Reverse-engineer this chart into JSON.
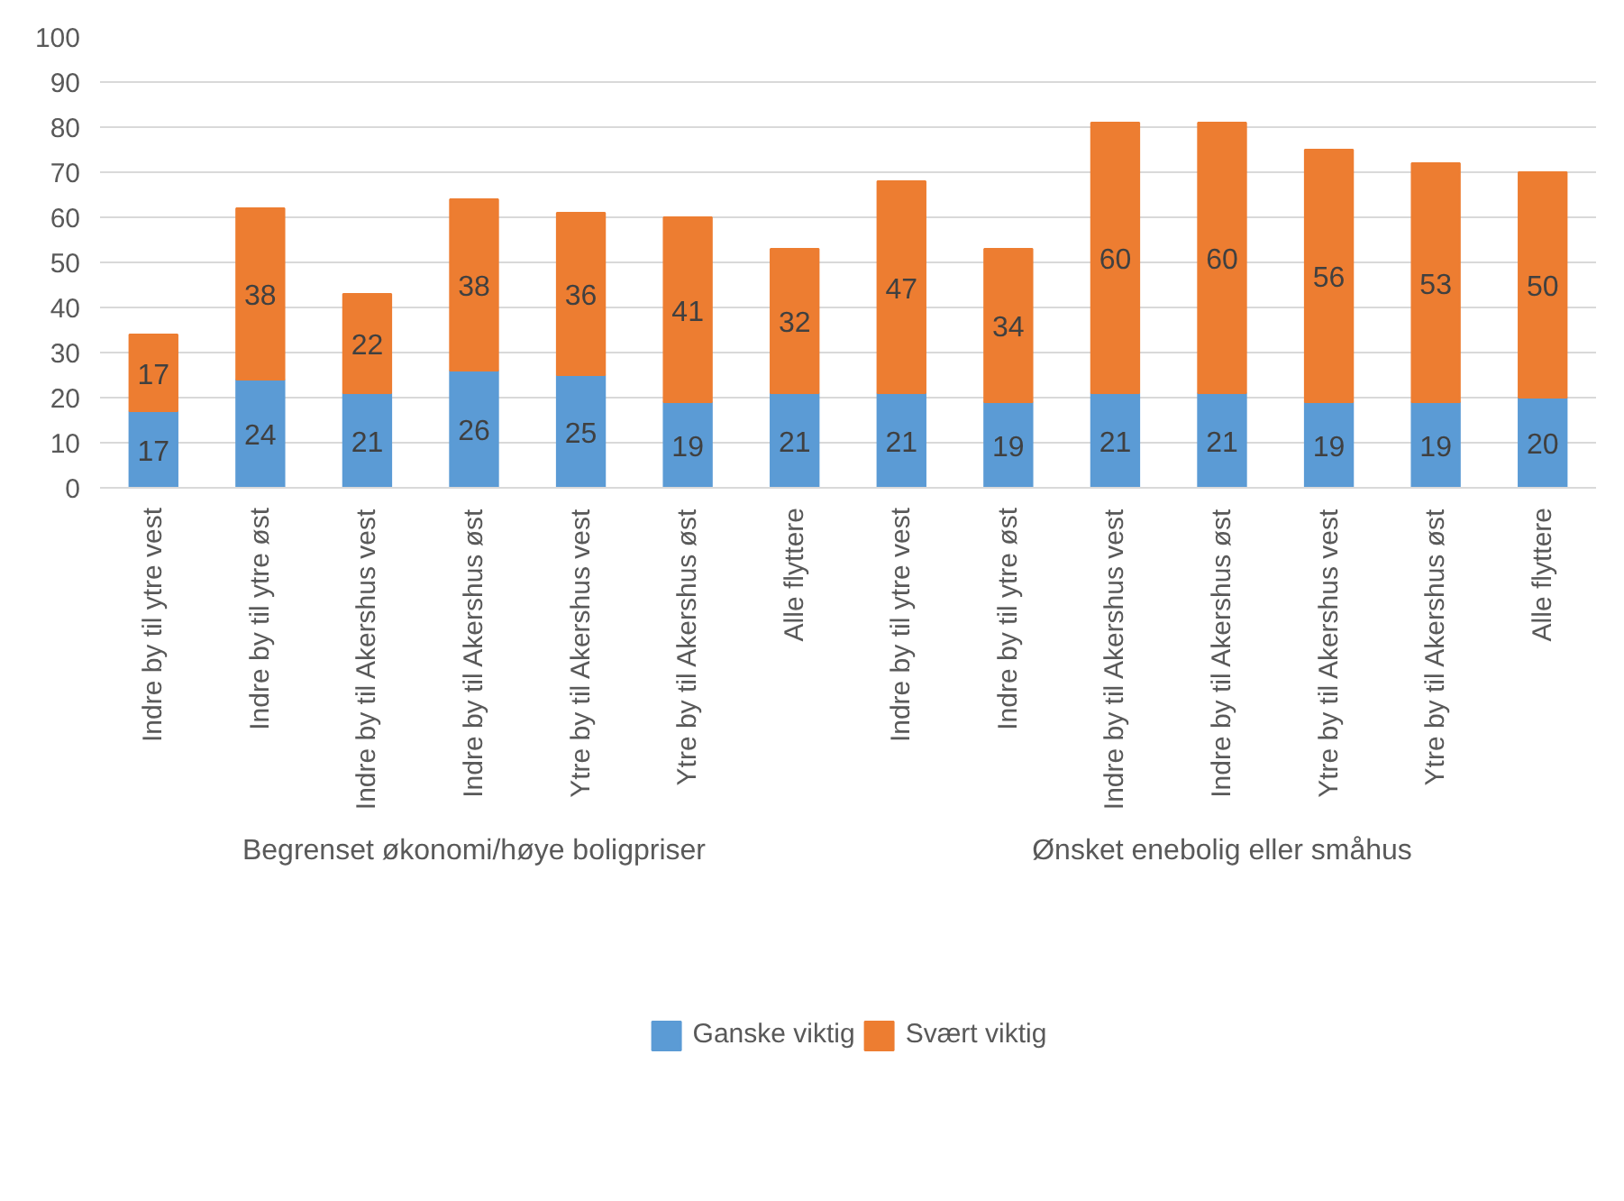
{
  "chart_data": {
    "type": "bar",
    "stacked": true,
    "categories": [
      "Indre by til ytre vest",
      "Indre by til ytre øst",
      "Indre by til Akershus vest",
      "Indre by til Akershus øst",
      "Ytre by til Akershus vest",
      "Ytre by til Akershus øst",
      "Alle flyttere",
      "Indre by til ytre vest",
      "Indre by til ytre øst",
      "Indre by til Akershus vest",
      "Indre by til Akershus øst",
      "Ytre by til Akershus vest",
      "Ytre by til Akershus øst",
      "Alle flyttere"
    ],
    "series": [
      {
        "name": "Ganske viktig",
        "color": "#5b9bd5",
        "values": [
          17,
          24,
          21,
          26,
          25,
          19,
          21,
          21,
          19,
          21,
          21,
          19,
          19,
          20
        ]
      },
      {
        "name": "Svært viktig",
        "color": "#ed7d31",
        "values": [
          17,
          38,
          22,
          38,
          36,
          41,
          32,
          47,
          34,
          60,
          60,
          56,
          53,
          50
        ]
      }
    ],
    "annotations": [
      "Begrenset økonomi/høye boligpriser",
      "Ønsket enebolig eller småhus"
    ],
    "ylim": [
      0,
      100
    ],
    "yticks": [
      0,
      10,
      20,
      30,
      40,
      50,
      60,
      70,
      80,
      90,
      100
    ],
    "grid": "y",
    "legend": "bottom",
    "data_labels": true
  }
}
